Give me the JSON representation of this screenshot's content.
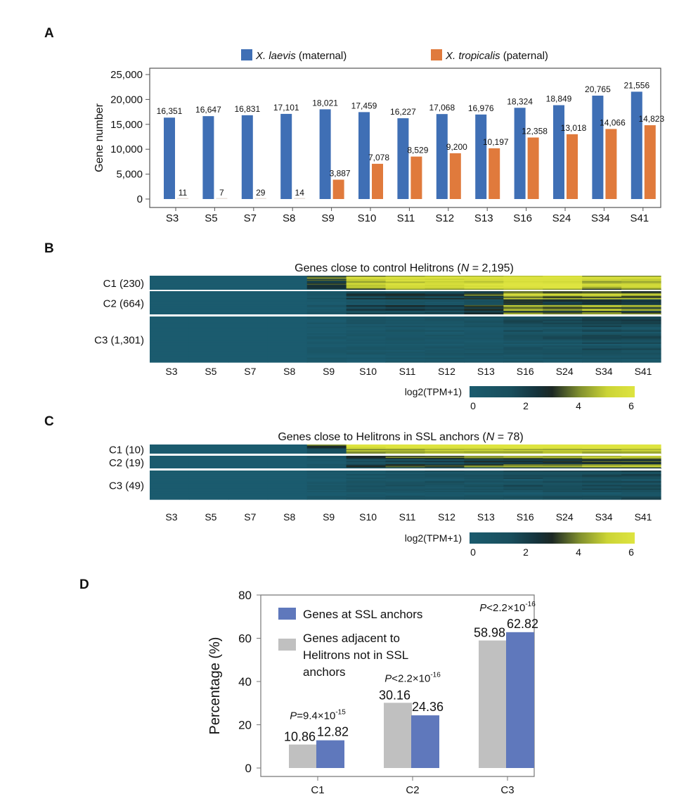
{
  "panels": {
    "A": "A",
    "B": "B",
    "C": "C",
    "D": "D"
  },
  "colors": {
    "laevis": "#3f6fb5",
    "tropicalis": "#e07a3c",
    "ssl": "#5f78bc",
    "not_ssl": "#c0c0c0",
    "separator": "#ffffff"
  },
  "chart_data": [
    {
      "panel": "A",
      "type": "bar",
      "categories": [
        "S3",
        "S5",
        "S7",
        "S8",
        "S9",
        "S10",
        "S11",
        "S12",
        "S13",
        "S16",
        "S24",
        "S34",
        "S41"
      ],
      "series": [
        {
          "name": "X. laevis (maternal)",
          "name_italic": "X. laevis",
          "name_rest": " (maternal)",
          "values": [
            16351,
            16647,
            16831,
            17101,
            18021,
            17459,
            16227,
            17068,
            16976,
            18324,
            18849,
            20765,
            21556
          ]
        },
        {
          "name": "X. tropicalis (paternal)",
          "name_italic": "X. tropicalis",
          "name_rest": " (paternal)",
          "values": [
            11,
            7,
            29,
            14,
            3887,
            7078,
            8529,
            9200,
            10197,
            12358,
            13018,
            14066,
            14823
          ]
        }
      ],
      "ylabel": "Gene number",
      "ylim": [
        0,
        25000
      ],
      "yticks": [
        "0",
        "5,000",
        "10,000",
        "15,000",
        "20,000",
        "25,000"
      ],
      "legend": "top",
      "data_labels": true
    },
    {
      "panel": "B",
      "type": "heatmap",
      "title_pre": "Genes close to control Helitrons (",
      "title_n": "N",
      "title_post": " = 2,195)",
      "x": [
        "S3",
        "S5",
        "S7",
        "S8",
        "S9",
        "S10",
        "S11",
        "S12",
        "S13",
        "S16",
        "S24",
        "S34",
        "S41"
      ],
      "clusters": [
        {
          "label": "C1 (230)",
          "mean_log2_tpm": [
            0,
            0,
            0,
            0,
            2.4,
            4.6,
            5.2,
            5.2,
            5.3,
            5.8,
            5.8,
            4.6,
            4.8
          ]
        },
        {
          "label": "C2 (664)",
          "mean_log2_tpm": [
            0,
            0,
            0,
            0,
            0.5,
            1.5,
            1.8,
            1.6,
            2.3,
            3.8,
            3.5,
            3.8,
            3.4
          ]
        },
        {
          "label": "C3 (1,301)",
          "mean_log2_tpm": [
            0,
            0,
            0,
            0,
            0.2,
            0.4,
            0.5,
            0.5,
            0.6,
            0.9,
            1.0,
            1.2,
            1.2
          ]
        }
      ],
      "colorbar": {
        "label": "log2(TPM+1)",
        "range": [
          0,
          6
        ],
        "ticks": [
          "0",
          "2",
          "4",
          "6"
        ]
      }
    },
    {
      "panel": "C",
      "type": "heatmap",
      "title_pre": "Genes close to Helitrons in SSL anchors (",
      "title_n": "N",
      "title_post": " = 78)",
      "x": [
        "S3",
        "S5",
        "S7",
        "S8",
        "S9",
        "S10",
        "S11",
        "S12",
        "S13",
        "S16",
        "S24",
        "S34",
        "S41"
      ],
      "clusters": [
        {
          "label": "C1 (10)",
          "mean_log2_tpm": [
            0,
            0,
            0,
            0,
            2.0,
            5.0,
            5.5,
            5.5,
            5.4,
            5.4,
            5.5,
            5.5,
            5.5
          ]
        },
        {
          "label": "C2 (19)",
          "mean_log2_tpm": [
            0,
            0,
            0,
            0,
            0.5,
            2.0,
            2.5,
            2.5,
            3.0,
            3.4,
            3.4,
            3.8,
            3.8
          ]
        },
        {
          "label": "C3 (49)",
          "mean_log2_tpm": [
            0,
            0,
            0,
            0,
            0.3,
            0.6,
            0.8,
            0.8,
            0.8,
            1.0,
            1.0,
            1.2,
            1.2
          ]
        }
      ],
      "colorbar": {
        "label": "log2(TPM+1)",
        "range": [
          0,
          6
        ],
        "ticks": [
          "0",
          "2",
          "4",
          "6"
        ]
      }
    },
    {
      "panel": "D",
      "type": "bar",
      "categories": [
        "C1",
        "C2",
        "C3"
      ],
      "series": [
        {
          "name": "Genes adjacent to Helitrons not in SSL anchors",
          "legend_lines": [
            "Genes adjacent to",
            "Helitrons not in SSL",
            "anchors"
          ],
          "values": [
            10.86,
            30.16,
            58.98
          ],
          "labels": [
            "10.86",
            "30.16",
            "58.98"
          ]
        },
        {
          "name": "Genes at SSL anchors",
          "legend_lines": [
            "Genes at SSL anchors"
          ],
          "values": [
            12.82,
            24.36,
            62.82
          ],
          "labels": [
            "12.82",
            "24.36",
            "62.82"
          ]
        }
      ],
      "pvalues": [
        {
          "p": "P",
          "rel": "=9.4×10",
          "exp": "-15"
        },
        {
          "p": "P",
          "rel": "<2.2×10",
          "exp": "-16"
        },
        {
          "p": "P",
          "rel": "<2.2×10",
          "exp": "-16"
        }
      ],
      "ylabel": "Percentage (%)",
      "ylim": [
        0,
        80
      ],
      "yticks": [
        "0",
        "20",
        "40",
        "60",
        "80"
      ],
      "legend": "top-left"
    }
  ]
}
